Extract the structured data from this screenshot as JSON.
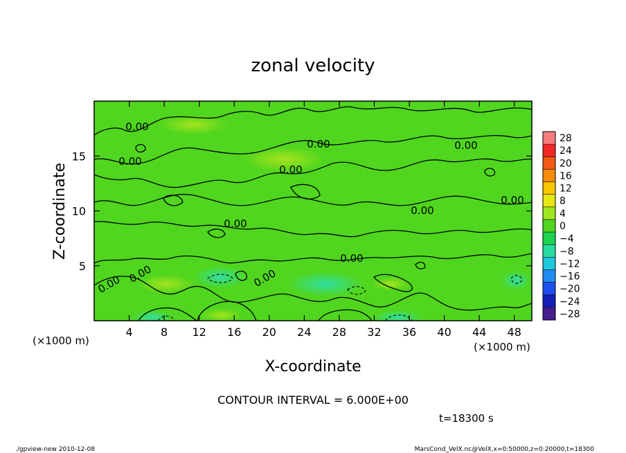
{
  "chart_data": {
    "type": "heatmap",
    "title": "zonal velocity",
    "xlabel": "X-coordinate",
    "ylabel": "Z-coordinate",
    "x_unit": "(×1000 m)",
    "y_unit": "(×1000 m)",
    "xlim": [
      0,
      50
    ],
    "ylim": [
      0,
      20
    ],
    "x_ticks": [
      4,
      8,
      12,
      16,
      20,
      24,
      28,
      32,
      36,
      40,
      44,
      48
    ],
    "y_ticks": [
      5,
      10,
      15
    ],
    "colorbar": {
      "levels": [
        "28",
        "24",
        "20",
        "16",
        "12",
        "8",
        "4",
        "0",
        "−4",
        "−8",
        "−12",
        "−16",
        "−20",
        "−24",
        "−28"
      ],
      "colors": [
        "#f77c7c",
        "#f02828",
        "#f05a14",
        "#f58c0a",
        "#f5c800",
        "#e6e614",
        "#a0e61e",
        "#50d61e",
        "#1ed250",
        "#28dca0",
        "#1ec8dc",
        "#1e8cf0",
        "#1e50f0",
        "#141eb4",
        "#461e8c"
      ]
    },
    "contour_labels": [
      "0.00",
      "0.00",
      "0.00",
      "0.00",
      "0.00",
      "0.00",
      "0.00",
      "0.00",
      "0.00",
      "0.00",
      "0.00",
      "0.00"
    ],
    "contour_interval_text": "CONTOUR INTERVAL = 6.000E+00",
    "time_text": "t=18300 s",
    "grid": false
  },
  "footer": {
    "left": "./gpview-new   2010-12-08",
    "right": "MarsCond_VelX.nc@VelX,x=0:50000,z=0:20000,t=18300"
  }
}
